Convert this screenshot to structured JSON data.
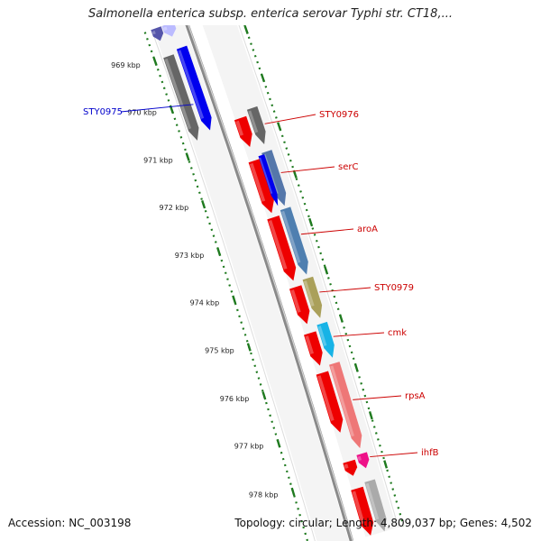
{
  "title": "Salmonella enterica subsp. enterica serovar Typhi str. CT18,...",
  "footer": {
    "accession": "Accession: NC_003198",
    "summary": "Topology: circular; Length: 4,809,037 bp; Genes: 4,502"
  },
  "colors": {
    "backbone": "#8a8a8a",
    "tick": "#1f7a1f",
    "forward_label": "#0000cc",
    "reverse_label": "#cc0000"
  },
  "ticks": [
    {
      "label": "969 kbp"
    },
    {
      "label": "970 kbp"
    },
    {
      "label": "971 kbp"
    },
    {
      "label": "972 kbp"
    },
    {
      "label": "973 kbp"
    },
    {
      "label": "974 kbp"
    },
    {
      "label": "975 kbp"
    },
    {
      "label": "976 kbp"
    },
    {
      "label": "977 kbp"
    },
    {
      "label": "978 kbp"
    }
  ],
  "forward_genes": [
    {
      "name": "STY0975",
      "color": "#0000ee",
      "labeled": true
    }
  ],
  "reverse_genes": [
    {
      "name": "STY0976",
      "color": "#ee0000",
      "labeled": true
    },
    {
      "name": "serC",
      "color": "#ee0000",
      "labeled": true
    },
    {
      "name": "aroA",
      "color": "#ee0000",
      "labeled": true
    },
    {
      "name": "STY0979",
      "color": "#ee0000",
      "labeled": true
    },
    {
      "name": "cmk",
      "color": "#ee0000",
      "labeled": true
    },
    {
      "name": "rpsA",
      "color": "#ee0000",
      "labeled": true
    },
    {
      "name": "ihfB",
      "color": "#ee0000",
      "labeled": true
    }
  ]
}
